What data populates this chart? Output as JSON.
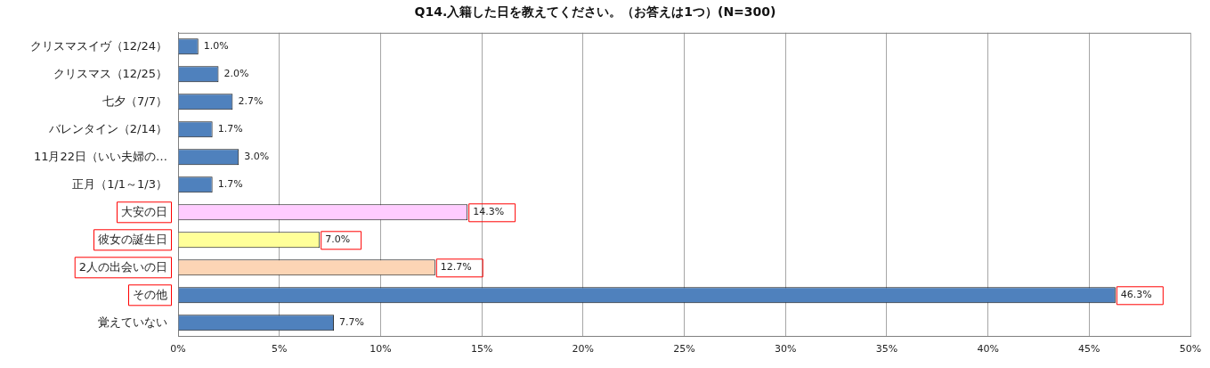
{
  "chart_data": {
    "type": "bar",
    "orientation": "horizontal",
    "title": "Q14.入籍した日を教えてください。（お答えは1つ）(N=300)",
    "categories": [
      "クリスマスイヴ（12/24）",
      "クリスマス（12/25）",
      "七夕（7/7）",
      "バレンタイン（2/14）",
      "11月22日（いい夫婦の…",
      "正月（1/1～1/3）",
      "大安の日",
      "彼女の誕生日",
      "2人の出会いの日",
      "その他",
      "覚えていない"
    ],
    "values": [
      1.0,
      2.0,
      2.7,
      1.7,
      3.0,
      1.7,
      14.3,
      7.0,
      12.7,
      46.3,
      7.7
    ],
    "colors": [
      "#4f81bd",
      "#4f81bd",
      "#4f81bd",
      "#4f81bd",
      "#4f81bd",
      "#4f81bd",
      "#ffccff",
      "#ffff99",
      "#fcd5b5",
      "#4f81bd",
      "#4f81bd"
    ],
    "value_labels": [
      "1.0%",
      "2.0%",
      "2.7%",
      "1.7%",
      "3.0%",
      "1.7%",
      "14.3%",
      "7.0%",
      "12.7%",
      "46.3%",
      "7.7%"
    ],
    "xlim": [
      0,
      50
    ],
    "xticks": [
      {
        "value": 0,
        "label": "0%"
      },
      {
        "value": 5,
        "label": "5%"
      },
      {
        "value": 10,
        "label": "10%"
      },
      {
        "value": 15,
        "label": "15%"
      },
      {
        "value": 20,
        "label": "20%"
      },
      {
        "value": 25,
        "label": "25%"
      },
      {
        "value": 30,
        "label": "30%"
      },
      {
        "value": 35,
        "label": "35%"
      },
      {
        "value": 40,
        "label": "40%"
      },
      {
        "value": 45,
        "label": "45%"
      },
      {
        "value": 50,
        "label": "50%"
      }
    ],
    "grid": "x",
    "legend": false
  }
}
